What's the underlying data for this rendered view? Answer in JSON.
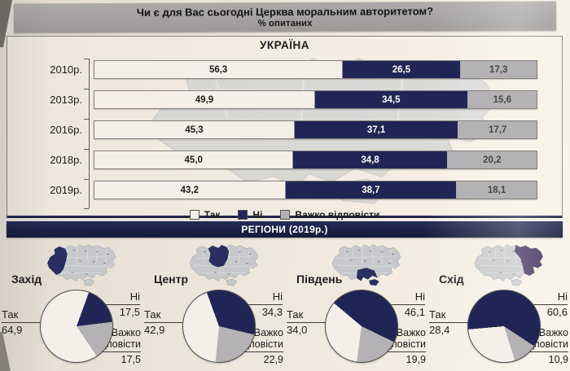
{
  "header": {
    "title": "Чи є для Вас сьогодні Церква моральним авторитетом?",
    "subtitle": "% опитаних"
  },
  "ukraine": {
    "heading": "УКРАЇНА"
  },
  "legend": {
    "items": [
      {
        "label": "Так",
        "color": "#f4f0e9"
      },
      {
        "label": "Ні",
        "color": "#212555"
      },
      {
        "label": "Важко відповісти",
        "color": "#b4b2b4"
      }
    ]
  },
  "regions_band": {
    "label": "РЕГІОНИ (2019р.)"
  },
  "pie_callout_labels": {
    "yes": "Так",
    "no": "Ні",
    "hard_line1": "Важко",
    "hard_line2": "відповісти"
  },
  "colors": {
    "yes": "#f4f0e9",
    "no": "#212555",
    "hard": "#b4b2b4",
    "map_base": "#c6c8cb",
    "band_navy": "#1a2048"
  },
  "chart_data": [
    {
      "type": "bar",
      "orientation": "horizontal-stacked",
      "title": "УКРАЇНА",
      "unit": "% опитаних",
      "categories": [
        "2010р.",
        "2013р.",
        "2016р.",
        "2018р.",
        "2019р."
      ],
      "series": [
        {
          "name": "Так",
          "color": "#f4f0e9",
          "values": [
            56.3,
            49.9,
            45.3,
            45.0,
            43.2
          ]
        },
        {
          "name": "Ні",
          "color": "#212555",
          "values": [
            26.5,
            34.5,
            37.1,
            34.8,
            38.7
          ]
        },
        {
          "name": "Важко відповісти",
          "color": "#b4b2b4",
          "values": [
            17.3,
            15.6,
            17.7,
            20.2,
            18.1
          ]
        }
      ],
      "xlim": [
        0,
        100
      ],
      "legend_position": "bottom"
    },
    {
      "type": "pie",
      "title": "Захід",
      "map": "west",
      "highlight_color": "#2a2f60",
      "labels": [
        "Так",
        "Ні",
        "Важко відповісти"
      ],
      "values": [
        64.9,
        17.5,
        17.5
      ],
      "start_angle": 20
    },
    {
      "type": "pie",
      "title": "Центр",
      "map": "center",
      "highlight_color": "#2a2f60",
      "labels": [
        "Так",
        "Ні",
        "Важко відповісти"
      ],
      "values": [
        42.9,
        34.3,
        22.9
      ],
      "start_angle": -20
    },
    {
      "type": "pie",
      "title": "Південь",
      "map": "south",
      "highlight_color": "#2a2f60",
      "labels": [
        "Так",
        "Ні",
        "Важко відповісти"
      ],
      "values": [
        34.0,
        46.1,
        19.9
      ],
      "start_angle": -50
    },
    {
      "type": "pie",
      "title": "Схід",
      "map": "east",
      "highlight_color": "#3f2f5c",
      "labels": [
        "Так",
        "Ні",
        "Важко відповісти"
      ],
      "values": [
        28.4,
        60.6,
        10.9
      ],
      "start_angle": -95
    }
  ]
}
